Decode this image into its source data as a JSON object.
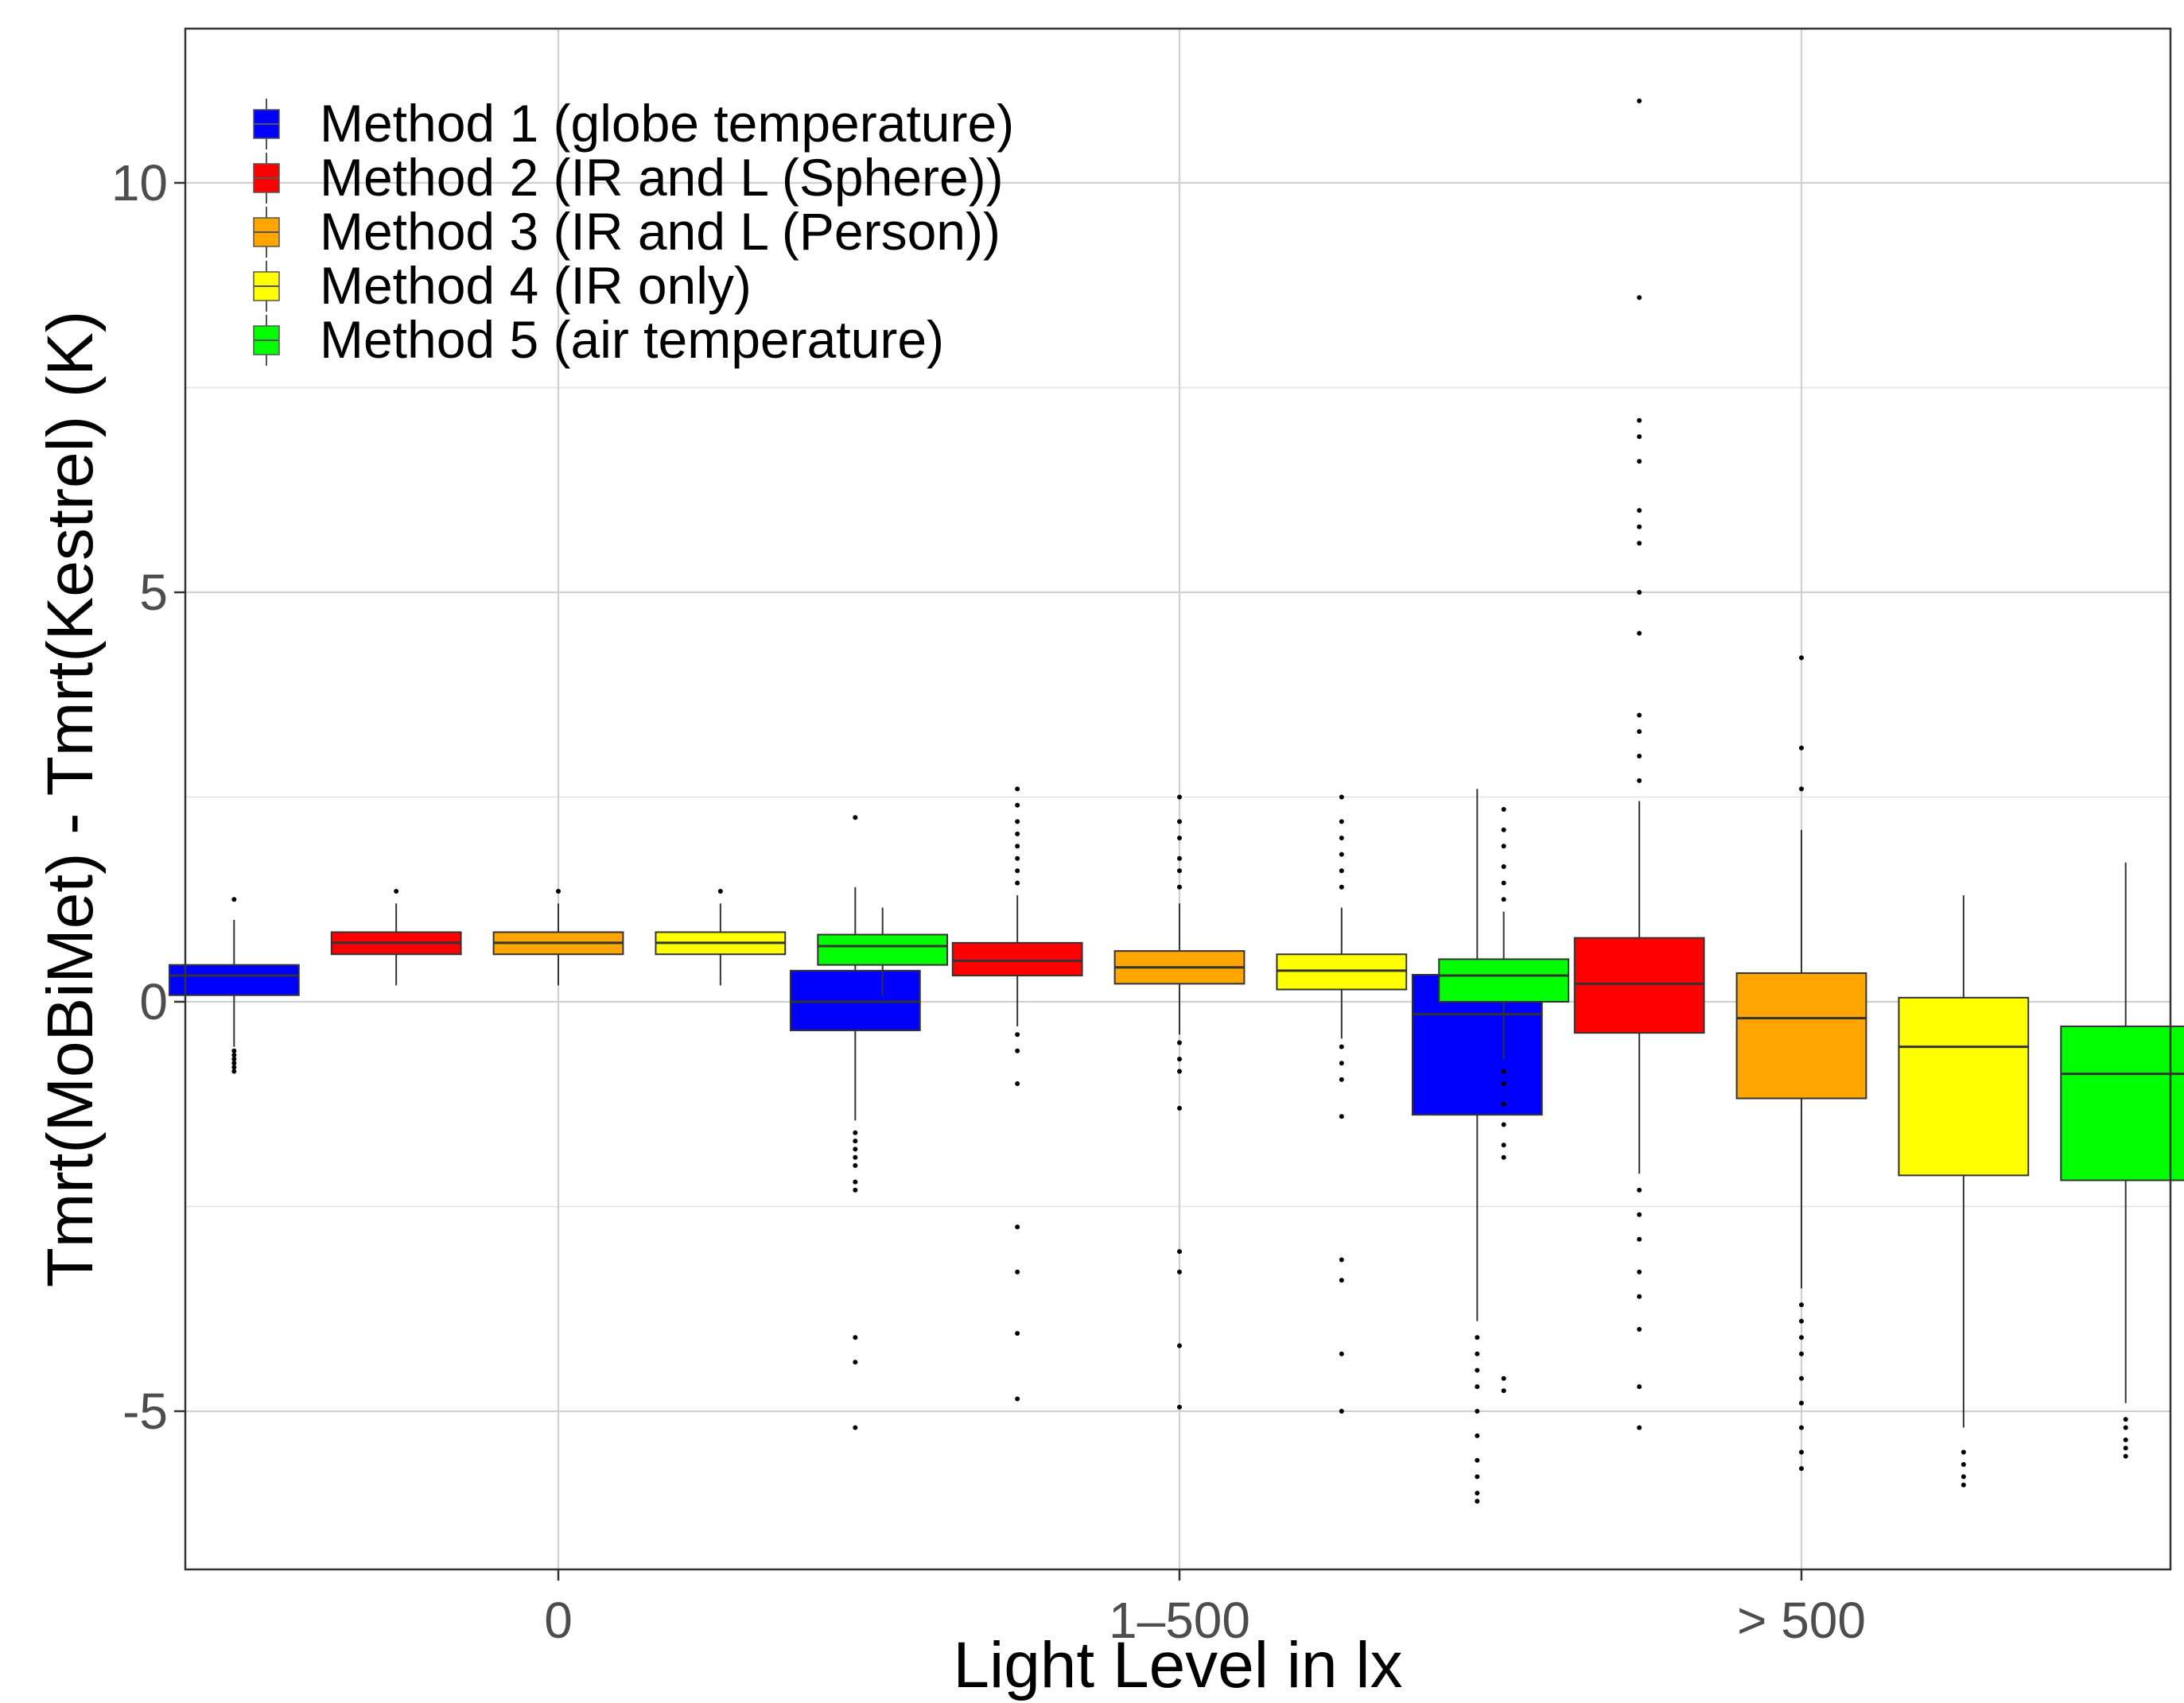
{
  "chart_data": {
    "type": "box",
    "xlabel": "Light Level in lx",
    "ylabel": "Tmrt(MoBiMet) - Tmrt(Kestrel) (K)",
    "ylim": [
      -7,
      12
    ],
    "yticks": [
      -5,
      0,
      5,
      10
    ],
    "ytick_labels": [
      "-5",
      "0",
      "5",
      "10"
    ],
    "categories": [
      "0",
      "1–500",
      "> 500"
    ],
    "legend_position": "top-left",
    "grid": true,
    "series": [
      {
        "name": "Method 1 (globe temperature)",
        "color": "#0000FF",
        "boxes": [
          {
            "q1": 0.08,
            "median": 0.32,
            "q3": 0.45,
            "whisker_low": -0.55,
            "whisker_high": 1.0,
            "outliers": [
              -0.6,
              -0.65,
              -0.7,
              -0.75,
              -0.8,
              -0.85,
              1.25
            ]
          },
          {
            "q1": -0.35,
            "median": 0.0,
            "q3": 0.38,
            "whisker_low": -1.45,
            "whisker_high": 1.4,
            "outliers": [
              -1.6,
              -1.7,
              -1.8,
              -1.9,
              -2.0,
              -2.2,
              -2.3,
              -4.1,
              -4.4,
              -5.2,
              2.25
            ]
          },
          {
            "q1": -1.38,
            "median": -0.15,
            "q3": 0.33,
            "whisker_low": -3.9,
            "whisker_high": 2.6,
            "outliers": [
              -4.1,
              -4.3,
              -4.5,
              -4.7,
              -5.0,
              -5.3,
              -5.6,
              -5.8,
              -6.0,
              -6.1
            ]
          }
        ]
      },
      {
        "name": "Method 2 (IR and L (Sphere))",
        "color": "#FF0000",
        "boxes": [
          {
            "q1": 0.58,
            "median": 0.72,
            "q3": 0.85,
            "whisker_low": 0.2,
            "whisker_high": 1.2,
            "outliers": [
              1.35
            ]
          },
          {
            "q1": 0.32,
            "median": 0.5,
            "q3": 0.72,
            "whisker_low": -0.3,
            "whisker_high": 1.3,
            "outliers": [
              1.45,
              1.6,
              1.75,
              1.9,
              2.05,
              2.2,
              2.4,
              2.6,
              -0.4,
              -0.6,
              -1.0,
              -2.75,
              -3.3,
              -4.05,
              -4.85
            ]
          },
          {
            "q1": -0.38,
            "median": 0.22,
            "q3": 0.78,
            "whisker_low": -2.1,
            "whisker_high": 2.45,
            "outliers": [
              2.7,
              3.0,
              3.3,
              3.5,
              4.5,
              5.0,
              5.6,
              5.8,
              6.0,
              6.6,
              6.9,
              7.1,
              8.6,
              11.0,
              -2.3,
              -2.6,
              -2.9,
              -3.3,
              -3.6,
              -4.0,
              -4.7,
              -5.2
            ]
          }
        ]
      },
      {
        "name": "Method 3 (IR and L (Person))",
        "color": "#FFA500",
        "boxes": [
          {
            "q1": 0.58,
            "median": 0.72,
            "q3": 0.85,
            "whisker_low": 0.2,
            "whisker_high": 1.2,
            "outliers": [
              1.35
            ]
          },
          {
            "q1": 0.22,
            "median": 0.42,
            "q3": 0.62,
            "whisker_low": -0.4,
            "whisker_high": 1.2,
            "outliers": [
              1.4,
              1.6,
              1.75,
              2.0,
              2.2,
              2.5,
              -0.5,
              -0.7,
              -0.85,
              -1.3,
              -3.05,
              -3.3,
              -4.2,
              -4.95
            ]
          },
          {
            "q1": -1.18,
            "median": -0.2,
            "q3": 0.35,
            "whisker_low": -3.5,
            "whisker_high": 2.1,
            "outliers": [
              2.6,
              3.1,
              4.2,
              -3.7,
              -3.9,
              -4.1,
              -4.3,
              -4.6,
              -4.9,
              -5.2,
              -5.5,
              -5.7
            ]
          }
        ]
      },
      {
        "name": "Method 4 (IR only)",
        "color": "#FFFF00",
        "boxes": [
          {
            "q1": 0.58,
            "median": 0.72,
            "q3": 0.85,
            "whisker_low": 0.2,
            "whisker_high": 1.2,
            "outliers": [
              1.35
            ]
          },
          {
            "q1": 0.15,
            "median": 0.38,
            "q3": 0.58,
            "whisker_low": -0.45,
            "whisker_high": 1.15,
            "outliers": [
              1.4,
              1.6,
              1.8,
              2.0,
              2.2,
              2.5,
              -0.55,
              -0.75,
              -0.95,
              -1.4,
              -3.15,
              -3.4,
              -4.3,
              -5.0
            ]
          },
          {
            "q1": -2.12,
            "median": -0.55,
            "q3": 0.05,
            "whisker_low": -5.2,
            "whisker_high": 1.3,
            "outliers": [
              -5.5,
              -5.65,
              -5.8,
              -5.9
            ]
          }
        ]
      },
      {
        "name": "Method 5 (air temperature)",
        "color": "#00FF00",
        "boxes": [
          {
            "q1": 0.45,
            "median": 0.68,
            "q3": 0.82,
            "whisker_low": 0.08,
            "whisker_high": 1.15,
            "outliers": []
          },
          {
            "q1": 0.0,
            "median": 0.32,
            "q3": 0.52,
            "whisker_low": -0.7,
            "whisker_high": 1.1,
            "outliers": [
              1.25,
              1.45,
              1.65,
              1.9,
              2.1,
              2.35,
              -0.85,
              -1.0,
              -1.25,
              -1.5,
              -1.75,
              -1.9,
              -4.6,
              -4.75
            ]
          },
          {
            "q1": -2.18,
            "median": -0.88,
            "q3": -0.3,
            "whisker_low": -4.9,
            "whisker_high": 1.7,
            "outliers": [
              -5.1,
              -5.2,
              -5.35,
              -5.45,
              -5.55
            ]
          }
        ]
      }
    ]
  }
}
